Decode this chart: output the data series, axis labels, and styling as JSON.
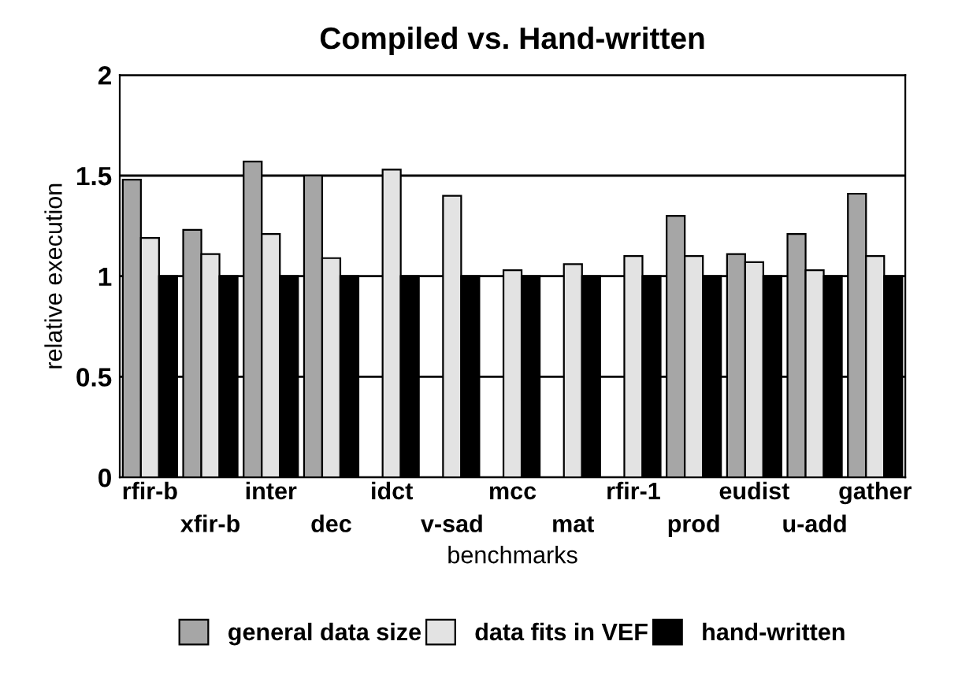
{
  "chart_data": {
    "type": "bar",
    "title": "Compiled vs. Hand-written",
    "xlabel": "benchmarks",
    "ylabel": "relative execution",
    "categories": [
      "rfir-b",
      "xfir-b",
      "inter",
      "dec",
      "idct",
      "v-sad",
      "mcc",
      "mat",
      "rfir-1",
      "prod",
      "eudist",
      "u-add",
      "gather"
    ],
    "series": [
      {
        "name": "general data size",
        "color": "#a6a6a6",
        "values": [
          1.48,
          1.23,
          1.57,
          1.5,
          null,
          null,
          null,
          null,
          null,
          1.3,
          1.11,
          1.21,
          1.41
        ]
      },
      {
        "name": "data fits in VEF",
        "color": "#e3e3e3",
        "values": [
          1.19,
          1.11,
          1.21,
          1.09,
          1.53,
          1.4,
          1.03,
          1.06,
          1.1,
          1.1,
          1.07,
          1.03,
          1.1
        ]
      },
      {
        "name": "hand-written",
        "color": "#000000",
        "values": [
          1,
          1,
          1,
          1,
          1,
          1,
          1,
          1,
          1,
          1,
          1,
          1,
          1
        ]
      }
    ],
    "ylim": [
      0,
      2
    ],
    "yticks": [
      0,
      0.5,
      1,
      1.5,
      2
    ],
    "grid": "y",
    "legend": "bottom"
  }
}
